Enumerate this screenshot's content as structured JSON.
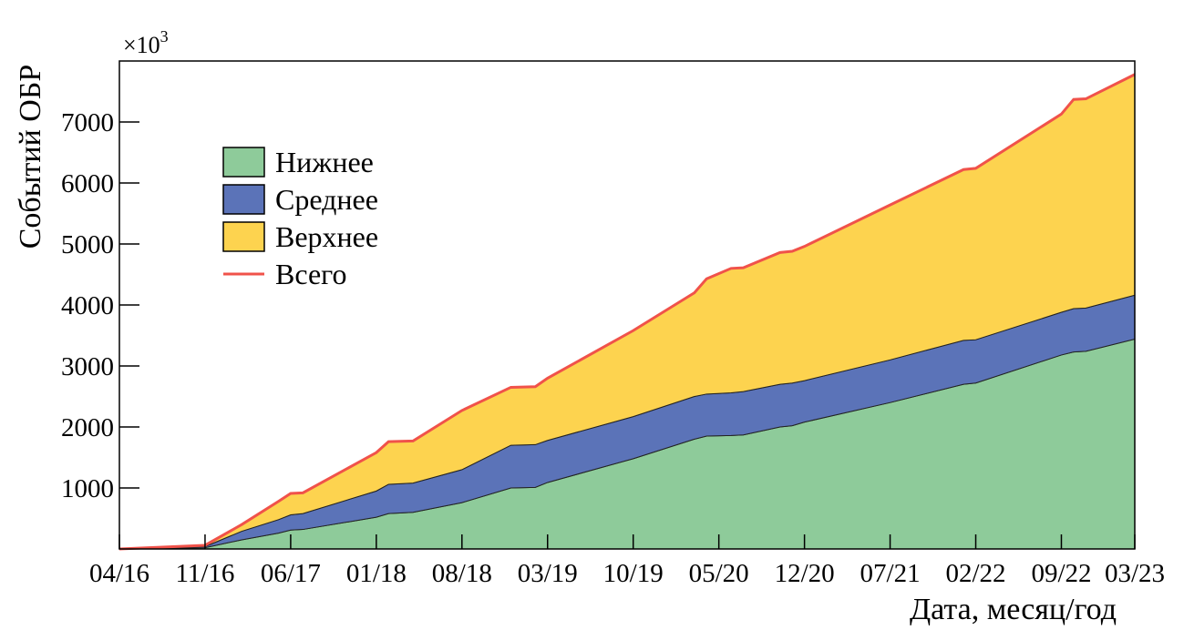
{
  "chart_data": {
    "type": "stacked_area",
    "y_label": "Событий ОБР",
    "x_label": "Дата, месяц/год",
    "y_multiplier": {
      "base": "×10",
      "exponent": "3"
    },
    "x": [
      "04/16",
      "11/16",
      "02/17",
      "05/17",
      "06/17",
      "07/17",
      "01/18",
      "02/18",
      "04/18",
      "08/18",
      "12/18",
      "02/19",
      "03/19",
      "10/19",
      "03/20",
      "04/20",
      "06/20",
      "07/20",
      "10/20",
      "11/20",
      "12/20",
      "07/21",
      "01/22",
      "02/22",
      "09/22",
      "10/22",
      "11/22",
      "03/23"
    ],
    "xticks": [
      "04/16",
      "11/16",
      "06/17",
      "01/18",
      "08/18",
      "03/19",
      "10/19",
      "05/20",
      "12/20",
      "07/21",
      "02/22",
      "09/22",
      "03/23"
    ],
    "ylim": [
      0,
      8000
    ],
    "yticks": [
      1000,
      2000,
      3000,
      4000,
      5000,
      6000,
      7000
    ],
    "series": [
      {
        "name": "Нижнее",
        "color": "#8ecb9a",
        "values": [
          0,
          20,
          150,
          260,
          310,
          320,
          520,
          580,
          600,
          760,
          1000,
          1010,
          1090,
          1480,
          1800,
          1850,
          1860,
          1870,
          2000,
          2020,
          2080,
          2400,
          2700,
          2720,
          3180,
          3230,
          3240,
          3440
        ]
      },
      {
        "name": "Среднее",
        "color": "#5b73b8",
        "values": [
          0,
          20,
          140,
          220,
          250,
          260,
          430,
          480,
          480,
          540,
          700,
          700,
          690,
          690,
          700,
          690,
          700,
          710,
          700,
          700,
          680,
          700,
          720,
          710,
          700,
          710,
          710,
          720
        ]
      },
      {
        "name": "Верхнее",
        "color": "#fdd34f",
        "values": [
          0,
          20,
          110,
          300,
          350,
          340,
          630,
          700,
          690,
          970,
          950,
          950,
          1020,
          1410,
          1700,
          1890,
          2040,
          2030,
          2160,
          2160,
          2200,
          2540,
          2800,
          2810,
          3250,
          3430,
          3430,
          3620
        ]
      }
    ],
    "total": {
      "name": "Всего",
      "color": "#f0524a",
      "values": [
        0,
        60,
        400,
        780,
        910,
        920,
        1580,
        1760,
        1770,
        2270,
        2650,
        2660,
        2800,
        3580,
        4200,
        4430,
        4600,
        4610,
        4860,
        4880,
        4960,
        5640,
        6220,
        6240,
        7130,
        7370,
        7380,
        7780
      ]
    }
  }
}
